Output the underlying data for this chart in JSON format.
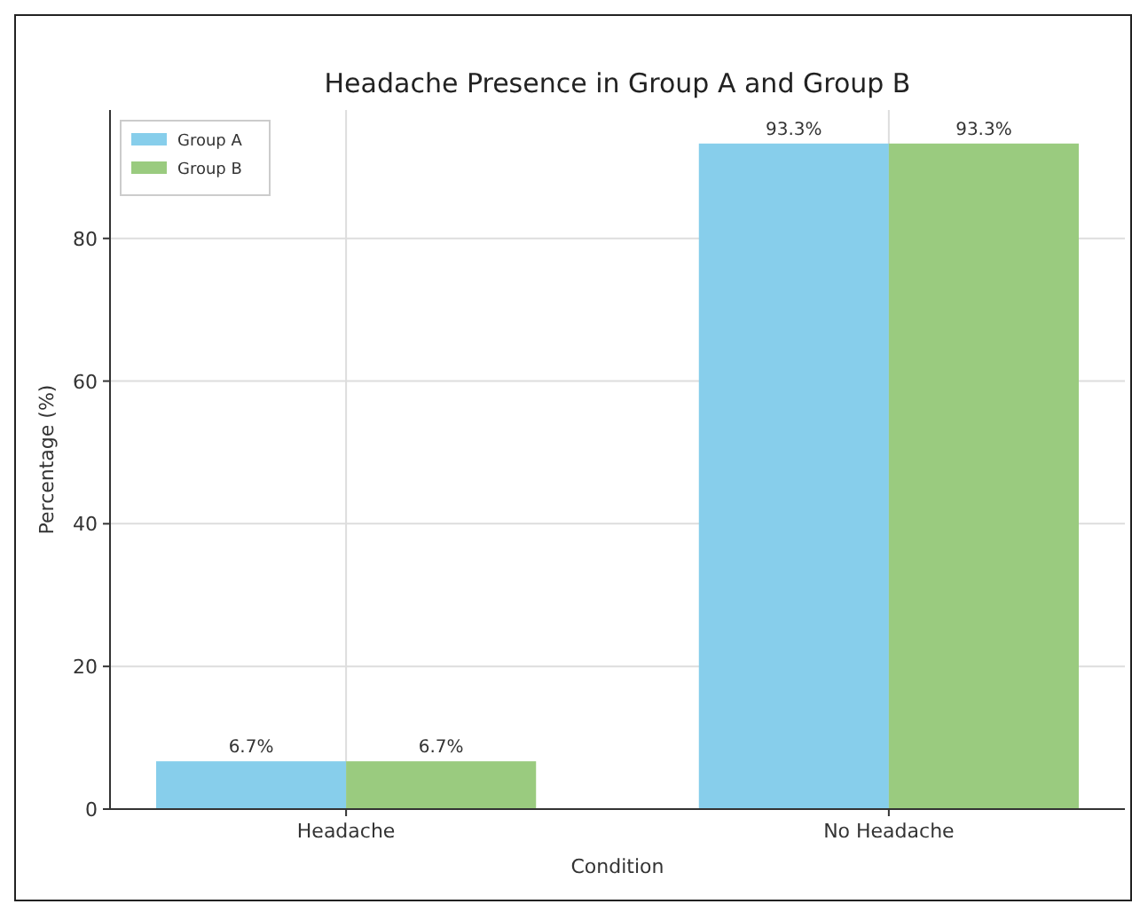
{
  "chart_data": {
    "type": "bar",
    "title": "Headache Presence in Group A and Group B",
    "xlabel": "Condition",
    "ylabel": "Percentage (%)",
    "categories": [
      "Headache",
      "No Headache"
    ],
    "series": [
      {
        "name": "Group A",
        "color": "#87ceeb",
        "values": [
          6.7,
          93.3
        ],
        "value_labels": [
          "6.7%",
          "93.3%"
        ]
      },
      {
        "name": "Group B",
        "color": "#9acb7f",
        "values": [
          6.7,
          93.3
        ],
        "value_labels": [
          "6.7%",
          "93.3%"
        ]
      }
    ],
    "ylim": [
      0,
      98
    ],
    "yticks": [
      0,
      20,
      40,
      60,
      80
    ],
    "grid": true,
    "legend": "top left"
  }
}
